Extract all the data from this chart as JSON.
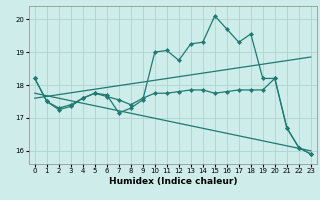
{
  "xlabel": "Humidex (Indice chaleur)",
  "xlim": [
    -0.5,
    23.5
  ],
  "ylim": [
    15.6,
    20.4
  ],
  "yticks": [
    16,
    17,
    18,
    19,
    20
  ],
  "xticks": [
    0,
    1,
    2,
    3,
    4,
    5,
    6,
    7,
    8,
    9,
    10,
    11,
    12,
    13,
    14,
    15,
    16,
    17,
    18,
    19,
    20,
    21,
    22,
    23
  ],
  "background_color": "#ceecea",
  "grid_color": "#aed4d0",
  "line_color": "#1e7a72",
  "series1_x": [
    0,
    1,
    2,
    3,
    4,
    5,
    6,
    7,
    8,
    9,
    10,
    11,
    12,
    13,
    14,
    15,
    16,
    17,
    18,
    19,
    20,
    21,
    22,
    23
  ],
  "series1_y": [
    18.2,
    17.5,
    17.3,
    17.4,
    17.6,
    17.75,
    17.7,
    17.15,
    17.3,
    17.55,
    19.0,
    19.05,
    18.75,
    19.25,
    19.3,
    20.1,
    19.7,
    19.3,
    19.55,
    18.2,
    18.2,
    16.7,
    16.1,
    15.9
  ],
  "series2_x": [
    0,
    1,
    2,
    3,
    4,
    5,
    6,
    7,
    8,
    9,
    10,
    11,
    12,
    13,
    14,
    15,
    16,
    17,
    18,
    19,
    20,
    21,
    22,
    23
  ],
  "series2_y": [
    18.2,
    17.5,
    17.25,
    17.35,
    17.6,
    17.75,
    17.65,
    17.55,
    17.4,
    17.6,
    17.75,
    17.75,
    17.8,
    17.85,
    17.85,
    17.75,
    17.8,
    17.85,
    17.85,
    17.85,
    18.2,
    16.7,
    16.1,
    15.9
  ],
  "series3_x": [
    0,
    20
  ],
  "series3_y": [
    17.55,
    18.2
  ],
  "series4_x": [
    0,
    20
  ],
  "series4_y": [
    17.7,
    18.2
  ],
  "regline1_x": [
    0,
    23
  ],
  "regline1_y": [
    17.6,
    18.85
  ],
  "regline2_x": [
    0,
    23
  ],
  "regline2_y": [
    17.75,
    16.0
  ]
}
